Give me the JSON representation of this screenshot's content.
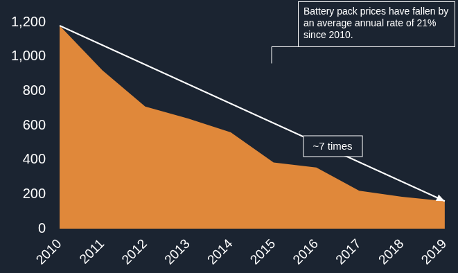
{
  "chart_data": {
    "type": "area",
    "categories": [
      "2010",
      "2011",
      "2012",
      "2013",
      "2014",
      "2015",
      "2016",
      "2017",
      "2018",
      "2019"
    ],
    "values": [
      1180,
      920,
      710,
      640,
      560,
      385,
      355,
      220,
      185,
      160
    ],
    "color": "#e0883a",
    "ylim": [
      0,
      1200
    ],
    "yticks": [
      0,
      200,
      400,
      600,
      800,
      1000,
      1200
    ],
    "grid": false,
    "annotations": [
      {
        "text": "Battery pack prices have fallen by an average annual rate of 21% since 2010."
      },
      {
        "text": "~7 times"
      }
    ]
  }
}
